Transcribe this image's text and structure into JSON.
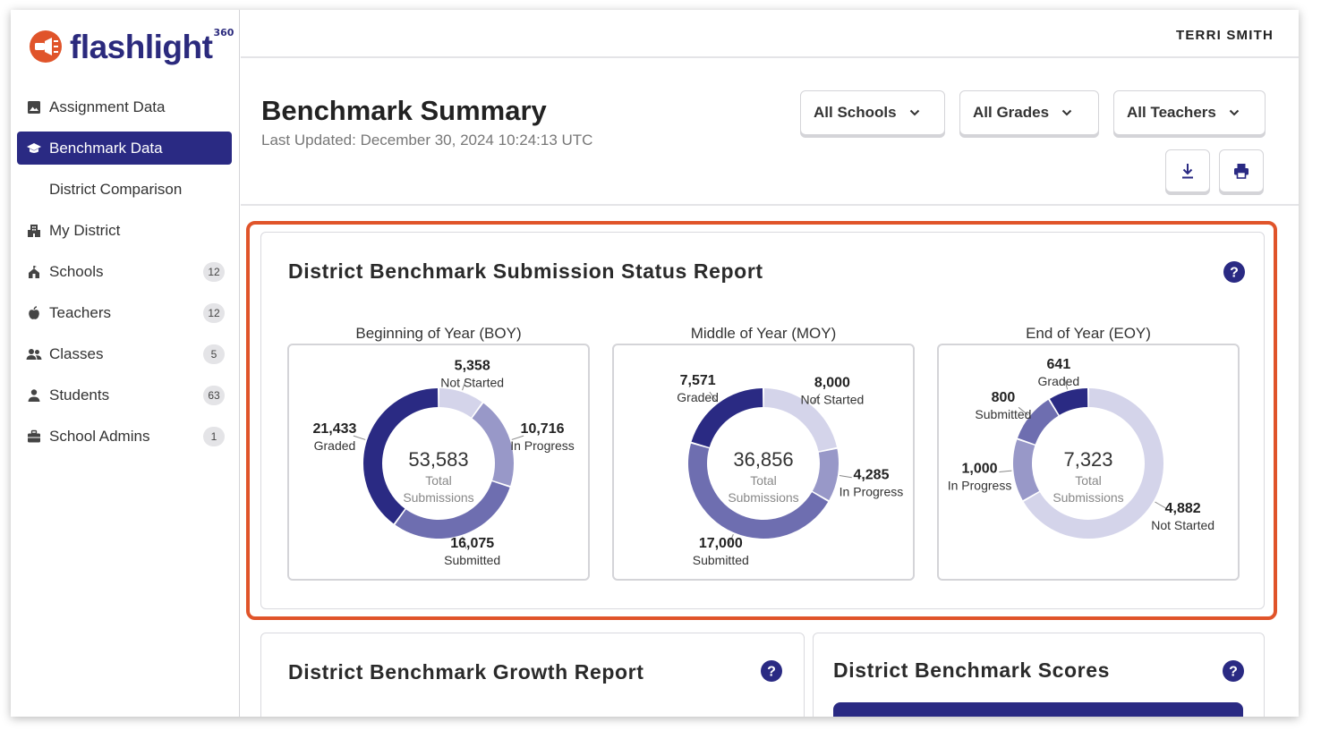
{
  "brand": {
    "name": "flashlight",
    "superscript": "360",
    "accent": "#e0542a",
    "primary": "#2a2a83"
  },
  "user": {
    "name": "TERRI SMITH"
  },
  "sidebar": {
    "items": [
      {
        "label": "Assignment Data",
        "icon": "image-icon",
        "badge": null
      },
      {
        "label": "Benchmark Data",
        "icon": "graduation-cap-icon",
        "badge": null,
        "active": true
      },
      {
        "label": "District Comparison",
        "icon": null,
        "badge": null
      },
      {
        "label": "My District",
        "icon": "building-icon",
        "badge": null
      },
      {
        "label": "Schools",
        "icon": "school-icon",
        "badge": "12"
      },
      {
        "label": "Teachers",
        "icon": "apple-icon",
        "badge": "12"
      },
      {
        "label": "Classes",
        "icon": "group-icon",
        "badge": "5"
      },
      {
        "label": "Students",
        "icon": "person-icon",
        "badge": "63"
      },
      {
        "label": "School Admins",
        "icon": "briefcase-icon",
        "badge": "1"
      }
    ]
  },
  "header": {
    "title": "Benchmark Summary",
    "last_updated": "Last Updated: December 30, 2024 10:24:13 UTC",
    "filters": [
      "All Schools",
      "All Grades",
      "All Teachers"
    ],
    "download_icon": "download-icon",
    "print_icon": "print-icon"
  },
  "status_report": {
    "title": "District Benchmark Submission Status Report",
    "panels": [
      {
        "label": "Beginning of Year (BOY)",
        "total": "53,583",
        "total_label_1": "Total",
        "total_label_2": "Submissions",
        "segments": [
          {
            "name": "Not Started",
            "value": "5,358"
          },
          {
            "name": "In Progress",
            "value": "10,716"
          },
          {
            "name": "Submitted",
            "value": "16,075"
          },
          {
            "name": "Graded",
            "value": "21,433"
          }
        ]
      },
      {
        "label": "Middle of Year (MOY)",
        "total": "36,856",
        "total_label_1": "Total",
        "total_label_2": "Submissions",
        "segments": [
          {
            "name": "Not Started",
            "value": "8,000"
          },
          {
            "name": "In Progress",
            "value": "4,285"
          },
          {
            "name": "Submitted",
            "value": "17,000"
          },
          {
            "name": "Graded",
            "value": "7,571"
          }
        ]
      },
      {
        "label": "End of Year (EOY)",
        "total": "7,323",
        "total_label_1": "Total",
        "total_label_2": "Submissions",
        "segments": [
          {
            "name": "Not Started",
            "value": "4,882"
          },
          {
            "name": "In Progress",
            "value": "1,000"
          },
          {
            "name": "Submitted",
            "value": "800"
          },
          {
            "name": "Graded",
            "value": "641"
          }
        ]
      }
    ],
    "colors": {
      "Not Started": "#d4d4ea",
      "In Progress": "#9898c8",
      "Submitted": "#6e6eb0",
      "Graded": "#2a2a83"
    }
  },
  "growth_report": {
    "title": "District Benchmark Growth Report"
  },
  "scores": {
    "title": "District Benchmark Scores"
  }
}
